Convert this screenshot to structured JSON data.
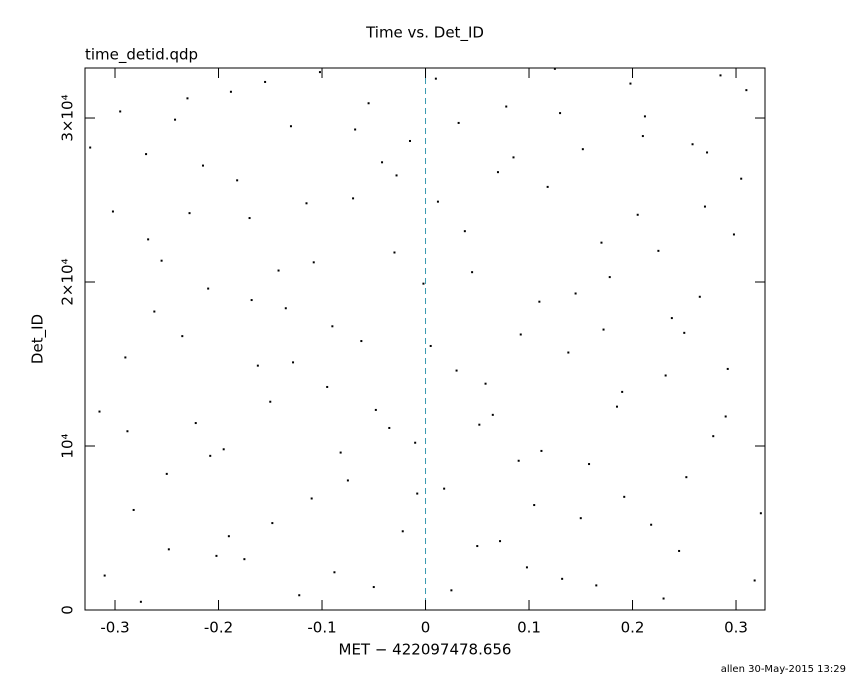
{
  "chart_data": {
    "type": "scatter",
    "title": "Time vs. Det_ID",
    "subtitle": "time_detid.qdp",
    "x_label": "MET − 422097478.656",
    "y_label": "Det_ID",
    "footer": "allen 30-May-2015 13:29",
    "color": "#000000",
    "frame_color": "#000000",
    "reference_line": {
      "x": 0,
      "color": "#3a9ab0"
    },
    "xlim": [
      -0.329,
      0.328
    ],
    "ylim": [
      0,
      33050
    ],
    "xticks": [
      -0.3,
      -0.2,
      -0.1,
      0,
      0.1,
      0.2,
      0.3
    ],
    "yticks": [
      0,
      {
        "value": 10000,
        "label": "10⁴"
      },
      {
        "value": 20000,
        "label": "2×10⁴"
      },
      {
        "value": 30000,
        "label": "3×10⁴"
      }
    ],
    "x": [
      -0.31,
      -0.29,
      -0.27,
      -0.25,
      -0.23,
      -0.21,
      -0.19,
      -0.17,
      -0.15,
      -0.13,
      -0.11,
      -0.09,
      -0.07,
      -0.05,
      -0.03,
      -0.01,
      0.01,
      0.03,
      0.05,
      0.07,
      0.09,
      0.11,
      0.13,
      0.15,
      0.17,
      0.19,
      0.21,
      0.23,
      0.25,
      0.27,
      0.29,
      0.31,
      -0.302,
      -0.282,
      -0.262,
      -0.242,
      -0.222,
      -0.202,
      -0.182,
      -0.162,
      -0.142,
      -0.122,
      -0.102,
      -0.082,
      -0.062,
      -0.042,
      -0.022,
      -0.002,
      0.018,
      0.038,
      0.058,
      0.078,
      0.098,
      0.118,
      0.138,
      0.158,
      0.178,
      0.198,
      0.218,
      0.238,
      0.258,
      0.278,
      0.298,
      0.318,
      -0.315,
      -0.295,
      -0.275,
      -0.255,
      -0.235,
      -0.215,
      -0.195,
      -0.175,
      -0.155,
      -0.135,
      -0.115,
      -0.095,
      -0.075,
      -0.055,
      -0.035,
      -0.015,
      0.005,
      0.025,
      0.045,
      0.065,
      0.085,
      0.105,
      0.125,
      0.145,
      0.165,
      0.185,
      0.205,
      0.225,
      0.245,
      0.265,
      0.285,
      0.305,
      -0.324,
      -0.288,
      -0.268,
      -0.248,
      -0.228,
      -0.208,
      -0.188,
      -0.168,
      -0.148,
      -0.128,
      -0.108,
      -0.088,
      -0.068,
      -0.048,
      -0.028,
      -0.008,
      0.012,
      0.032,
      0.052,
      0.072,
      0.092,
      0.112,
      0.132,
      0.152,
      0.172,
      0.192,
      0.212,
      0.232,
      0.252,
      0.272,
      0.292,
      0.324
    ],
    "values": [
      2100,
      15400,
      27800,
      8300,
      31200,
      19600,
      4500,
      23900,
      12700,
      29500,
      6800,
      17300,
      25100,
      1400,
      21800,
      10200,
      32400,
      14600,
      3900,
      26700,
      9100,
      18800,
      30300,
      5600,
      22400,
      13300,
      28900,
      700,
      16900,
      24600,
      11800,
      31700,
      24300,
      6100,
      18200,
      29900,
      11400,
      3300,
      26200,
      14900,
      20700,
      900,
      32800,
      9600,
      16400,
      27300,
      4800,
      19900,
      7400,
      23100,
      13800,
      30700,
      2600,
      25800,
      15700,
      8900,
      20300,
      32100,
      5200,
      17800,
      28400,
      10600,
      22900,
      1800,
      12100,
      30400,
      500,
      21300,
      16700,
      27100,
      9800,
      3100,
      32200,
      18400,
      24800,
      13600,
      7900,
      30900,
      11100,
      28600,
      16100,
      1200,
      20600,
      11900,
      27600,
      6400,
      33000,
      19300,
      1500,
      12400,
      24100,
      21900,
      3600,
      19100,
      32600,
      26300,
      28200,
      10900,
      22600,
      3700,
      24200,
      9400,
      31600,
      18900,
      5300,
      15100,
      21200,
      2300,
      29300,
      12200,
      26500,
      7100,
      24900,
      29700,
      11300,
      4200,
      16800,
      9700,
      1900,
      28100,
      17100,
      6900,
      30100,
      14300,
      8100,
      27900,
      14700,
      5900
    ]
  }
}
